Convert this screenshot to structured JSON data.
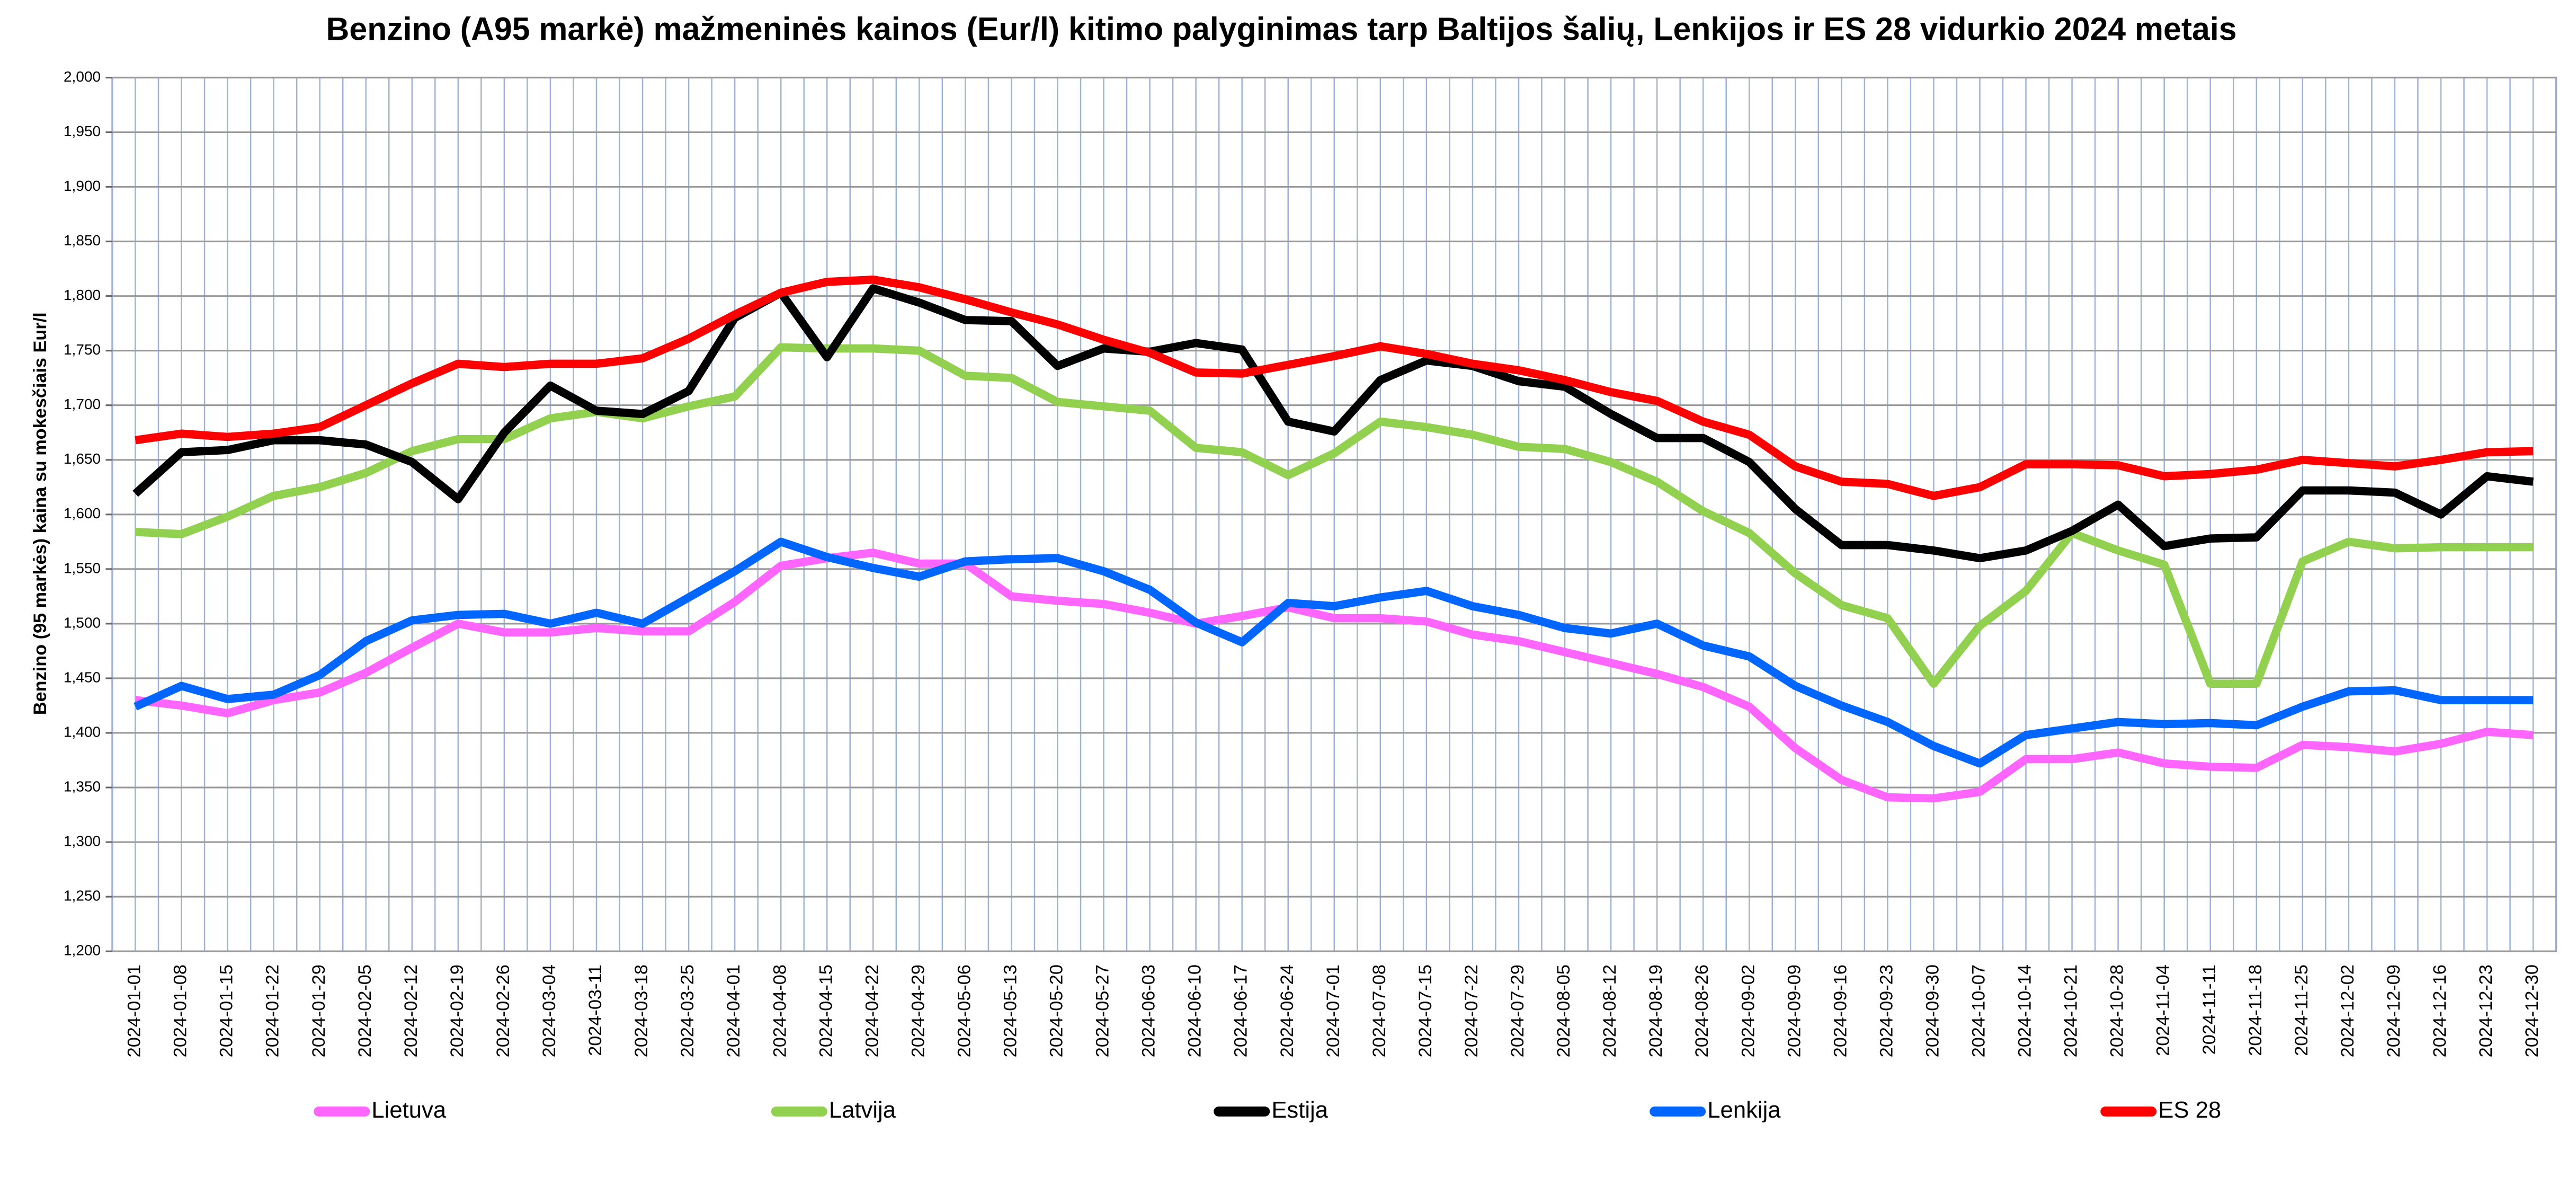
{
  "chart_data": {
    "type": "line",
    "title": "Benzino (A95 markė) mažmeninės kainos (Eur/l) kitimo palyginimas tarp Baltijos šalių, Lenkijos ir ES 28 vidurkio 2024 metais",
    "y_label": "Benzino (95 markės) kaina su mokesčiais Eur/l",
    "categories": [
      "2024-01-01",
      "2024-01-08",
      "2024-01-15",
      "2024-01-22",
      "2024-01-29",
      "2024-02-05",
      "2024-02-12",
      "2024-02-19",
      "2024-02-26",
      "2024-03-04",
      "2024-03-11",
      "2024-03-18",
      "2024-03-25",
      "2024-04-01",
      "2024-04-08",
      "2024-04-15",
      "2024-04-22",
      "2024-04-29",
      "2024-05-06",
      "2024-05-13",
      "2024-05-20",
      "2024-05-27",
      "2024-06-03",
      "2024-06-10",
      "2024-06-17",
      "2024-06-24",
      "2024-07-01",
      "2024-07-08",
      "2024-07-15",
      "2024-07-22",
      "2024-07-29",
      "2024-08-05",
      "2024-08-12",
      "2024-08-19",
      "2024-08-26",
      "2024-09-02",
      "2024-09-09",
      "2024-09-16",
      "2024-09-23",
      "2024-09-30",
      "2024-10-07",
      "2024-10-14",
      "2024-10-21",
      "2024-10-28",
      "2024-11-04",
      "2024-11-11",
      "2024-11-18",
      "2024-11-25",
      "2024-12-02",
      "2024-12-09",
      "2024-12-16",
      "2024-12-23",
      "2024-12-30"
    ],
    "series": [
      {
        "name": "Lietuva",
        "color": "#ff66ff",
        "values": [
          1.43,
          1.425,
          1.418,
          1.43,
          1.437,
          1.455,
          1.478,
          1.5,
          1.492,
          1.492,
          1.496,
          1.493,
          1.493,
          1.52,
          1.553,
          1.56,
          1.565,
          1.555,
          1.555,
          1.525,
          1.521,
          1.518,
          1.51,
          1.5,
          1.507,
          1.515,
          1.505,
          1.505,
          1.502,
          1.49,
          1.484,
          1.474,
          1.464,
          1.454,
          1.442,
          1.424,
          1.386,
          1.357,
          1.341,
          1.34,
          1.346,
          1.376,
          1.376,
          1.382,
          1.372,
          1.369,
          1.368,
          1.389,
          1.387,
          1.383,
          1.39,
          1.401,
          1.398
        ]
      },
      {
        "name": "Latvija",
        "color": "#92d050",
        "values": [
          1.584,
          1.582,
          1.598,
          1.617,
          1.625,
          1.638,
          1.658,
          1.669,
          1.669,
          1.688,
          1.694,
          1.688,
          1.699,
          1.708,
          1.753,
          1.752,
          1.752,
          1.75,
          1.727,
          1.725,
          1.703,
          1.699,
          1.695,
          1.661,
          1.657,
          1.636,
          1.656,
          1.685,
          1.68,
          1.673,
          1.662,
          1.66,
          1.648,
          1.63,
          1.603,
          1.583,
          1.546,
          1.517,
          1.505,
          1.445,
          1.498,
          1.53,
          1.583,
          1.567,
          1.554,
          1.445,
          1.445,
          1.557,
          1.575,
          1.569,
          1.57,
          1.57,
          1.57
        ]
      },
      {
        "name": "Estija",
        "color": "#000000",
        "values": [
          1.619,
          1.657,
          1.659,
          1.668,
          1.668,
          1.664,
          1.648,
          1.614,
          1.675,
          1.718,
          1.695,
          1.692,
          1.713,
          1.78,
          1.803,
          1.744,
          1.807,
          1.794,
          1.778,
          1.777,
          1.736,
          1.752,
          1.749,
          1.757,
          1.751,
          1.685,
          1.676,
          1.723,
          1.741,
          1.736,
          1.722,
          1.717,
          1.692,
          1.67,
          1.67,
          1.648,
          1.605,
          1.572,
          1.572,
          1.567,
          1.56,
          1.567,
          1.585,
          1.609,
          1.571,
          1.578,
          1.579,
          1.622,
          1.622,
          1.62,
          1.6,
          1.635,
          1.63
        ]
      },
      {
        "name": "Lenkija",
        "color": "#0066ff",
        "values": [
          1.424,
          1.443,
          1.431,
          1.435,
          1.453,
          1.484,
          1.503,
          1.508,
          1.509,
          1.5,
          1.51,
          1.5,
          1.524,
          1.548,
          1.575,
          1.561,
          1.551,
          1.543,
          1.557,
          1.559,
          1.56,
          1.548,
          1.531,
          1.501,
          1.483,
          1.519,
          1.516,
          1.524,
          1.53,
          1.516,
          1.508,
          1.496,
          1.491,
          1.5,
          1.48,
          1.47,
          1.443,
          1.425,
          1.41,
          1.388,
          1.372,
          1.398,
          1.404,
          1.41,
          1.408,
          1.409,
          1.407,
          1.424,
          1.438,
          1.439,
          1.43,
          1.43,
          1.43
        ]
      },
      {
        "name": "ES 28",
        "color": "#ff0000",
        "values": [
          1.668,
          1.674,
          1.671,
          1.674,
          1.68,
          1.7,
          1.72,
          1.738,
          1.735,
          1.738,
          1.738,
          1.743,
          1.761,
          1.783,
          1.803,
          1.813,
          1.815,
          1.808,
          1.797,
          1.785,
          1.774,
          1.76,
          1.748,
          1.73,
          1.729,
          1.737,
          1.745,
          1.754,
          1.747,
          1.738,
          1.732,
          1.723,
          1.712,
          1.704,
          1.685,
          1.673,
          1.644,
          1.63,
          1.628,
          1.617,
          1.625,
          1.646,
          1.646,
          1.645,
          1.635,
          1.637,
          1.641,
          1.65,
          1.647,
          1.644,
          1.65,
          1.657,
          1.658
        ]
      }
    ],
    "ylim": [
      1.2,
      2.0
    ],
    "yticks": [
      {
        "value": 1.2,
        "label": "1,200"
      },
      {
        "value": 1.25,
        "label": "1,250"
      },
      {
        "value": 1.3,
        "label": "1,300"
      },
      {
        "value": 1.35,
        "label": "1,350"
      },
      {
        "value": 1.4,
        "label": "1,400"
      },
      {
        "value": 1.45,
        "label": "1,450"
      },
      {
        "value": 1.5,
        "label": "1,500"
      },
      {
        "value": 1.55,
        "label": "1,550"
      },
      {
        "value": 1.6,
        "label": "1,600"
      },
      {
        "value": 1.65,
        "label": "1,650"
      },
      {
        "value": 1.7,
        "label": "1,700"
      },
      {
        "value": 1.75,
        "label": "1,750"
      },
      {
        "value": 1.8,
        "label": "1,800"
      },
      {
        "value": 1.85,
        "label": "1,850"
      },
      {
        "value": 1.9,
        "label": "1,900"
      },
      {
        "value": 1.95,
        "label": "1,950"
      },
      {
        "value": 2.0,
        "label": "2,000"
      }
    ],
    "grid": true,
    "legend": "bottom"
  }
}
